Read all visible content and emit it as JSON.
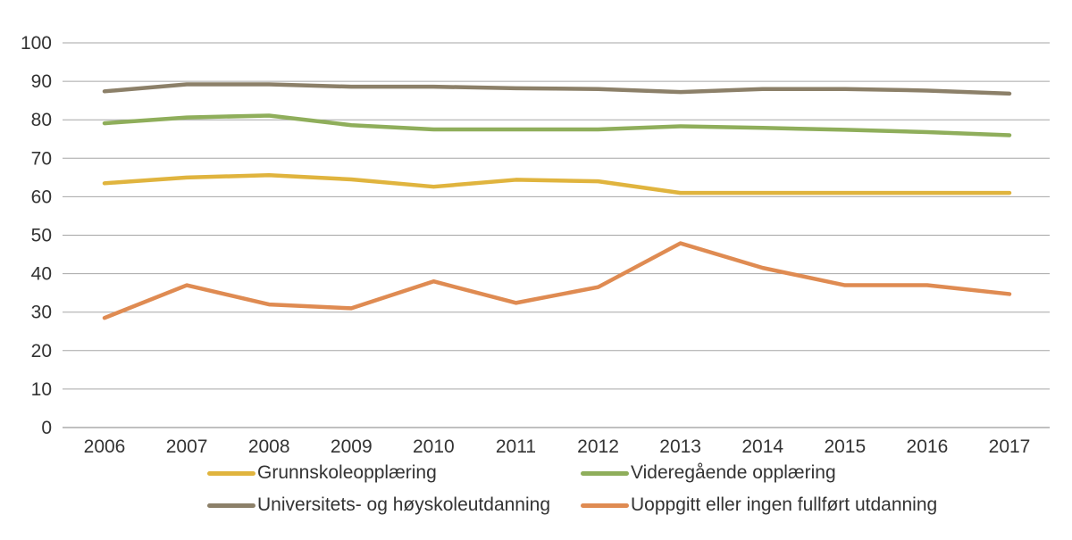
{
  "chart_data": {
    "type": "line",
    "title": "",
    "xlabel": "",
    "ylabel": "",
    "categories": [
      "2006",
      "2007",
      "2008",
      "2009",
      "2010",
      "2011",
      "2012",
      "2013",
      "2014",
      "2015",
      "2016",
      "2017"
    ],
    "series": [
      {
        "name": "Grunnskoleopplæring",
        "color": "#E0B43E",
        "values": [
          63.5,
          65.0,
          65.6,
          64.5,
          62.6,
          64.4,
          64.0,
          61.0,
          61.0,
          61.0,
          61.0,
          61.0
        ]
      },
      {
        "name": "Videregående opplæring",
        "color": "#8FAE5B",
        "values": [
          79.1,
          80.6,
          81.1,
          78.6,
          77.5,
          77.5,
          77.5,
          78.3,
          77.9,
          77.4,
          76.8,
          76.0
        ]
      },
      {
        "name": "Universitets- og høyskoleutdanning",
        "color": "#8C8069",
        "values": [
          87.4,
          89.2,
          89.2,
          88.6,
          88.6,
          88.2,
          88.0,
          87.2,
          88.0,
          88.0,
          87.6,
          86.8
        ]
      },
      {
        "name": "Uoppgitt eller ingen fullført utdanning",
        "color": "#DF8B52",
        "values": [
          28.5,
          37.0,
          32.0,
          31.0,
          38.0,
          32.4,
          36.5,
          47.9,
          41.5,
          37.0,
          37.0,
          34.7
        ]
      }
    ],
    "ylim": [
      0,
      100
    ],
    "ytick_step": 10,
    "y_tick_labels": [
      "0",
      "10",
      "20",
      "30",
      "40",
      "50",
      "60",
      "70",
      "80",
      "90",
      "100"
    ],
    "grid": true,
    "gridline_color": "#A6A6A6",
    "axis_line_color": "#808080",
    "text_color": "#333333",
    "legend_position": "bottom",
    "legend_order": [
      "Grunnskoleopplæring",
      "Videregående opplæring",
      "Universitets- og høyskoleutdanning",
      "Uoppgitt eller ingen fullført utdanning"
    ]
  }
}
